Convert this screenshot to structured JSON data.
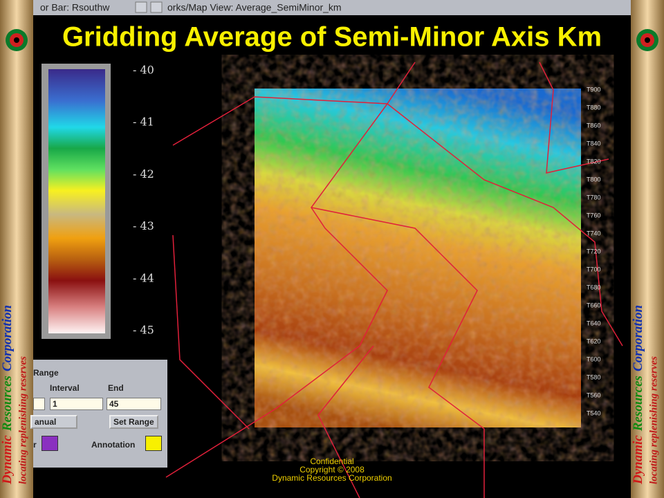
{
  "window_titles": [
    "or Bar: Rsouthw",
    "orks/Map View: Average_SemiMinor_km"
  ],
  "title": "Gridding Average of Semi-Minor Axis Km",
  "colorbar_labels": [
    "- 40",
    "- 41",
    "- 42",
    "- 43",
    "- 44",
    "- 45"
  ],
  "range_panel": {
    "heading": "Range",
    "interval_label": "Interval",
    "end_label": "End",
    "interval_value": "1",
    "end_value": "45",
    "mode": "anual",
    "button": "Set Range",
    "color_label": "r",
    "annotation_label": "Annotation"
  },
  "map_right_labels": [
    "T900",
    "T880",
    "T860",
    "T840",
    "T820",
    "T800",
    "T780",
    "T760",
    "T740",
    "T720",
    "T700",
    "T680",
    "T660",
    "T640",
    "T620",
    "T600",
    "T580",
    "T560",
    "T540"
  ],
  "footer": [
    "Confidential",
    "Copyright © 2008",
    "Dynamic Resources Corporation"
  ],
  "banner": {
    "words": [
      "Dynamic",
      "Resources",
      "Corporation"
    ],
    "tagline": "locating replenishing reserves"
  }
}
